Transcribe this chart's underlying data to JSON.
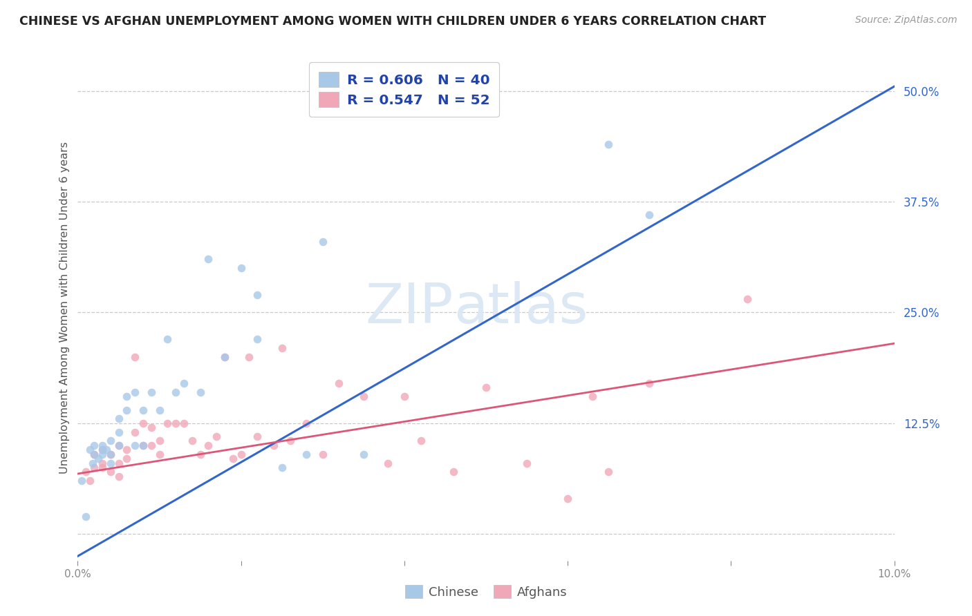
{
  "title": "CHINESE VS AFGHAN UNEMPLOYMENT AMONG WOMEN WITH CHILDREN UNDER 6 YEARS CORRELATION CHART",
  "source": "Source: ZipAtlas.com",
  "ylabel": "Unemployment Among Women with Children Under 6 years",
  "xmin": 0.0,
  "xmax": 0.1,
  "ymin": -0.03,
  "ymax": 0.54,
  "yticks": [
    0.0,
    0.125,
    0.25,
    0.375,
    0.5
  ],
  "ytick_labels": [
    "",
    "12.5%",
    "25.0%",
    "37.5%",
    "50.0%"
  ],
  "background_color": "#ffffff",
  "grid_color": "#c8c8c8",
  "chinese_color": "#a8c8e8",
  "afghan_color": "#f0a8b8",
  "chinese_line_color": "#3366cc",
  "afghan_line_color": "#dd5577",
  "legend_R_N_color": "#2244aa",
  "tick_label_color": "#3366cc",
  "bottom_tick_color": "#888888",
  "chinese_R": 0.606,
  "chinese_N": 40,
  "afghan_R": 0.547,
  "afghan_N": 52,
  "chinese_x": [
    0.0005,
    0.001,
    0.0015,
    0.0018,
    0.002,
    0.002,
    0.0025,
    0.003,
    0.003,
    0.003,
    0.0035,
    0.004,
    0.004,
    0.004,
    0.005,
    0.005,
    0.005,
    0.006,
    0.006,
    0.007,
    0.007,
    0.008,
    0.008,
    0.009,
    0.01,
    0.011,
    0.012,
    0.013,
    0.015,
    0.016,
    0.018,
    0.02,
    0.022,
    0.025,
    0.028,
    0.03,
    0.035,
    0.022,
    0.065,
    0.07
  ],
  "chinese_y": [
    0.06,
    0.02,
    0.095,
    0.08,
    0.1,
    0.09,
    0.085,
    0.095,
    0.09,
    0.1,
    0.095,
    0.08,
    0.105,
    0.09,
    0.1,
    0.115,
    0.13,
    0.155,
    0.14,
    0.16,
    0.1,
    0.1,
    0.14,
    0.16,
    0.14,
    0.22,
    0.16,
    0.17,
    0.16,
    0.31,
    0.2,
    0.3,
    0.22,
    0.075,
    0.09,
    0.33,
    0.09,
    0.27,
    0.44,
    0.36
  ],
  "afghan_x": [
    0.001,
    0.0015,
    0.002,
    0.002,
    0.003,
    0.003,
    0.003,
    0.004,
    0.004,
    0.005,
    0.005,
    0.005,
    0.006,
    0.006,
    0.007,
    0.007,
    0.008,
    0.008,
    0.009,
    0.009,
    0.01,
    0.01,
    0.011,
    0.012,
    0.013,
    0.014,
    0.015,
    0.016,
    0.017,
    0.018,
    0.019,
    0.02,
    0.021,
    0.022,
    0.024,
    0.025,
    0.026,
    0.028,
    0.03,
    0.032,
    0.035,
    0.038,
    0.04,
    0.042,
    0.046,
    0.05,
    0.055,
    0.06,
    0.063,
    0.065,
    0.07,
    0.082
  ],
  "afghan_y": [
    0.07,
    0.06,
    0.075,
    0.09,
    0.075,
    0.08,
    0.095,
    0.07,
    0.09,
    0.065,
    0.08,
    0.1,
    0.085,
    0.095,
    0.2,
    0.115,
    0.1,
    0.125,
    0.1,
    0.12,
    0.105,
    0.09,
    0.125,
    0.125,
    0.125,
    0.105,
    0.09,
    0.1,
    0.11,
    0.2,
    0.085,
    0.09,
    0.2,
    0.11,
    0.1,
    0.21,
    0.105,
    0.125,
    0.09,
    0.17,
    0.155,
    0.08,
    0.155,
    0.105,
    0.07,
    0.165,
    0.08,
    0.04,
    0.155,
    0.07,
    0.17,
    0.265
  ],
  "chinese_trend_x": [
    0.0,
    0.1
  ],
  "chinese_trend_y": [
    -0.025,
    0.505
  ],
  "afghan_trend_x": [
    0.0,
    0.1
  ],
  "afghan_trend_y": [
    0.068,
    0.215
  ],
  "watermark_line1": "ZIP",
  "watermark_line2": "atlas",
  "watermark_color": "#dde8f5",
  "scatter_size": 70,
  "scatter_alpha": 0.8,
  "extra_xticks": [
    0.02,
    0.04,
    0.06,
    0.08
  ]
}
